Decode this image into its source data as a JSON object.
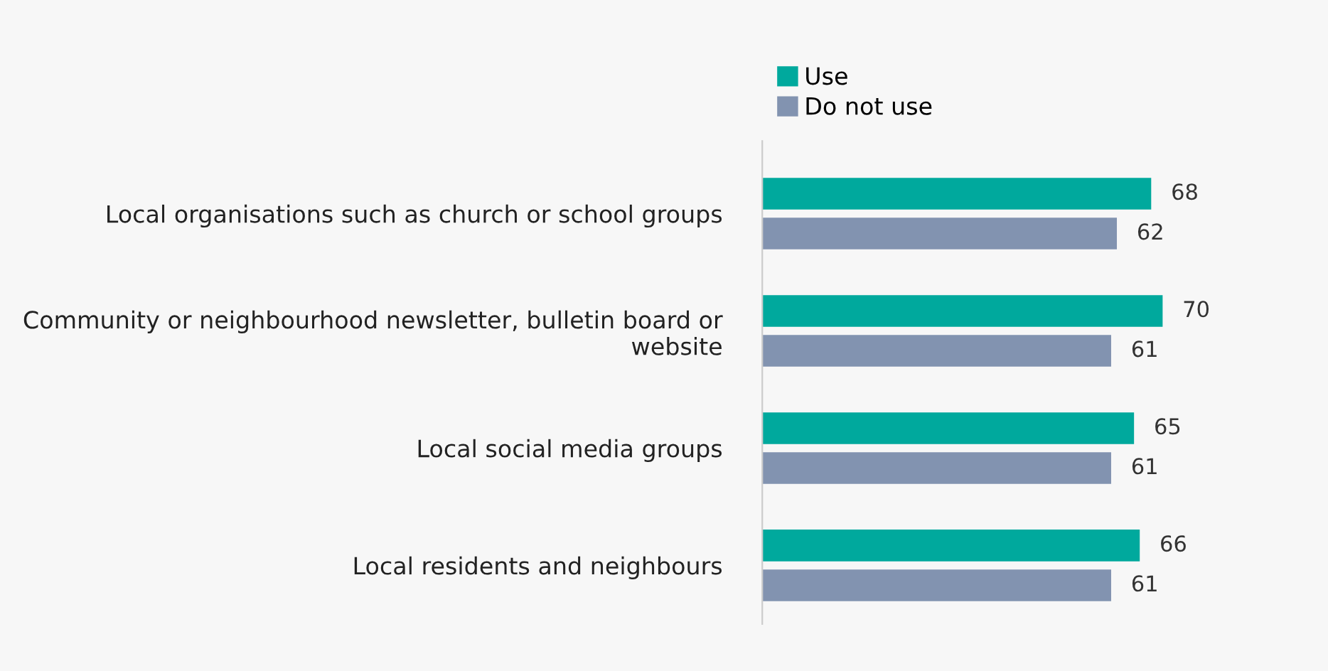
{
  "chart_data": {
    "type": "bar",
    "orientation": "horizontal",
    "categories": [
      "Local organisations such as church or school groups",
      "Community or neighbourhood newsletter, bulletin board or website",
      "Local social media groups",
      "Local residents and neighbours"
    ],
    "series": [
      {
        "name": "Use",
        "color": "#00a99d",
        "values": [
          68,
          70,
          65,
          66
        ]
      },
      {
        "name": "Do not use",
        "color": "#8293b0",
        "values": [
          62,
          61,
          61,
          61
        ]
      }
    ],
    "data_labels": true,
    "legend": "top",
    "grid": false
  }
}
